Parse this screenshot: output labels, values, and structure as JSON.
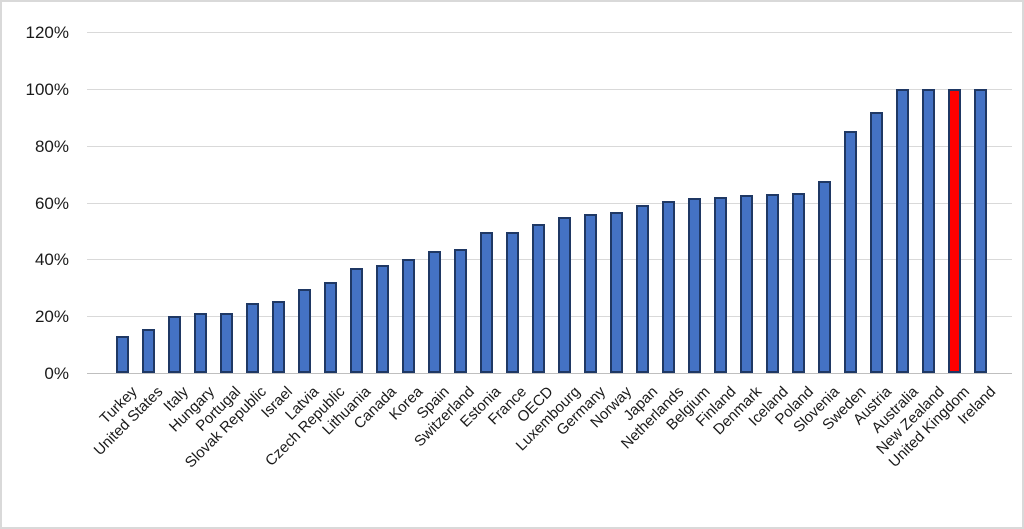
{
  "chart_data": {
    "type": "bar",
    "title": "",
    "xlabel": "",
    "ylabel": "",
    "ylim": [
      0,
      120
    ],
    "y_tick_step": 20,
    "y_tick_labels": [
      "0%",
      "20%",
      "40%",
      "60%",
      "80%",
      "100%",
      "120%"
    ],
    "grid": "horizontal",
    "legend": "none",
    "categories": [
      "Turkey",
      "United States",
      "Italy",
      "Hungary",
      "Portugal",
      "Slovak Republic",
      "Israel",
      "Latvia",
      "Czech Republic",
      "Lithuania",
      "Canada",
      "Korea",
      "Spain",
      "Switzerland",
      "Estonia",
      "France",
      "OECD",
      "Luxembourg",
      "Germany",
      "Norway",
      "Japan",
      "Netherlands",
      "Belgium",
      "Finland",
      "Denmark",
      "Iceland",
      "Poland",
      "Slovenia",
      "Sweden",
      "Austria",
      "Australia",
      "New Zealand",
      "United Kingdom",
      "Ireland"
    ],
    "values": [
      13,
      15.5,
      20,
      21,
      21,
      24.5,
      25.5,
      29.5,
      32,
      37,
      38,
      40,
      43,
      43.5,
      49.5,
      49.5,
      52.5,
      55,
      56,
      56.5,
      59,
      60.5,
      61.5,
      62,
      62.5,
      63,
      63.5,
      67.5,
      85,
      92,
      100,
      100,
      100,
      100
    ],
    "highlight_category": "United Kingdom",
    "colors": {
      "bar_fill": "#4472c4",
      "bar_border": "#1f3864",
      "highlight_fill": "#ff0000",
      "gridline": "#d9d9d9",
      "axis_line": "#bfbfbf",
      "text": "#1a1a1a",
      "background": "#ffffff",
      "frame_border": "#d9d9d9"
    }
  }
}
